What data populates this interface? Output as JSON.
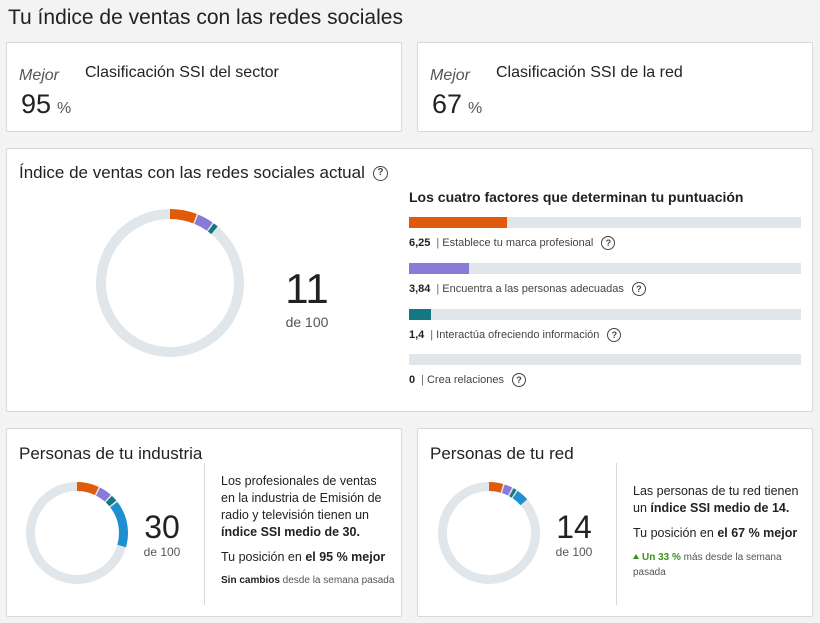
{
  "page": {
    "title": "Tu índice de ventas con las redes sociales"
  },
  "industry_rank": {
    "label": "Mejor",
    "value": "95",
    "unit": "%",
    "title": "Clasificación SSI del sector"
  },
  "network_rank": {
    "label": "Mejor",
    "value": "67",
    "unit": "%",
    "title": "Clasificación SSI de la red"
  },
  "current": {
    "title": "Índice de ventas con las redes sociales actual",
    "score": "11",
    "score_of": "de 100",
    "factors_title": "Los cuatro factores que determinan tu puntuación",
    "factors": [
      {
        "value": "6,25",
        "label": "Establece tu marca profesional",
        "fraction": 0.25,
        "color": "#e05a0b"
      },
      {
        "value": "3,84",
        "label": "Encuentra a las personas adecuadas",
        "fraction": 0.154,
        "color": "#8a7ad8"
      },
      {
        "value": "1,4",
        "label": "Interactúa ofreciendo información",
        "fraction": 0.056,
        "color": "#147882"
      },
      {
        "value": "0",
        "label": "Crea relaciones",
        "fraction": 0,
        "color": "#1e8fd0"
      }
    ]
  },
  "industry": {
    "title": "Personas de tu industria",
    "score": "30",
    "score_of": "de 100",
    "segments": [
      7.5,
      4.5,
      2.5,
      15.5
    ],
    "desc_prefix": "Los profesionales de ventas en la industria de Emisión de radio y televisión tienen un ",
    "desc_bold": "índice SSI medio de 30.",
    "position_prefix": "Tu posición en ",
    "position_bold": "el 95 % mejor",
    "change_bold": "Sin cambios",
    "change_rest": " desde la semana pasada"
  },
  "network": {
    "title": "Personas de tu red",
    "score": "14",
    "score_of": "de 100",
    "segments": [
      5,
      3,
      1.5,
      4.5
    ],
    "desc_prefix": "Las personas de tu red tienen un ",
    "desc_bold": "índice SSI medio de 14.",
    "position_prefix": "Tu posición en ",
    "position_bold": "el 67 % mejor",
    "change_up": "Un 33 %",
    "change_rest": " más desde la semana pasada"
  },
  "colors": {
    "track": "#e1e6ea",
    "seg1": "#e05a0b",
    "seg2": "#8a7ad8",
    "seg3": "#147882",
    "seg4": "#1e8fd0"
  },
  "icons": {
    "help": "question-circle-icon",
    "trend_up": "triangle-up-icon"
  }
}
